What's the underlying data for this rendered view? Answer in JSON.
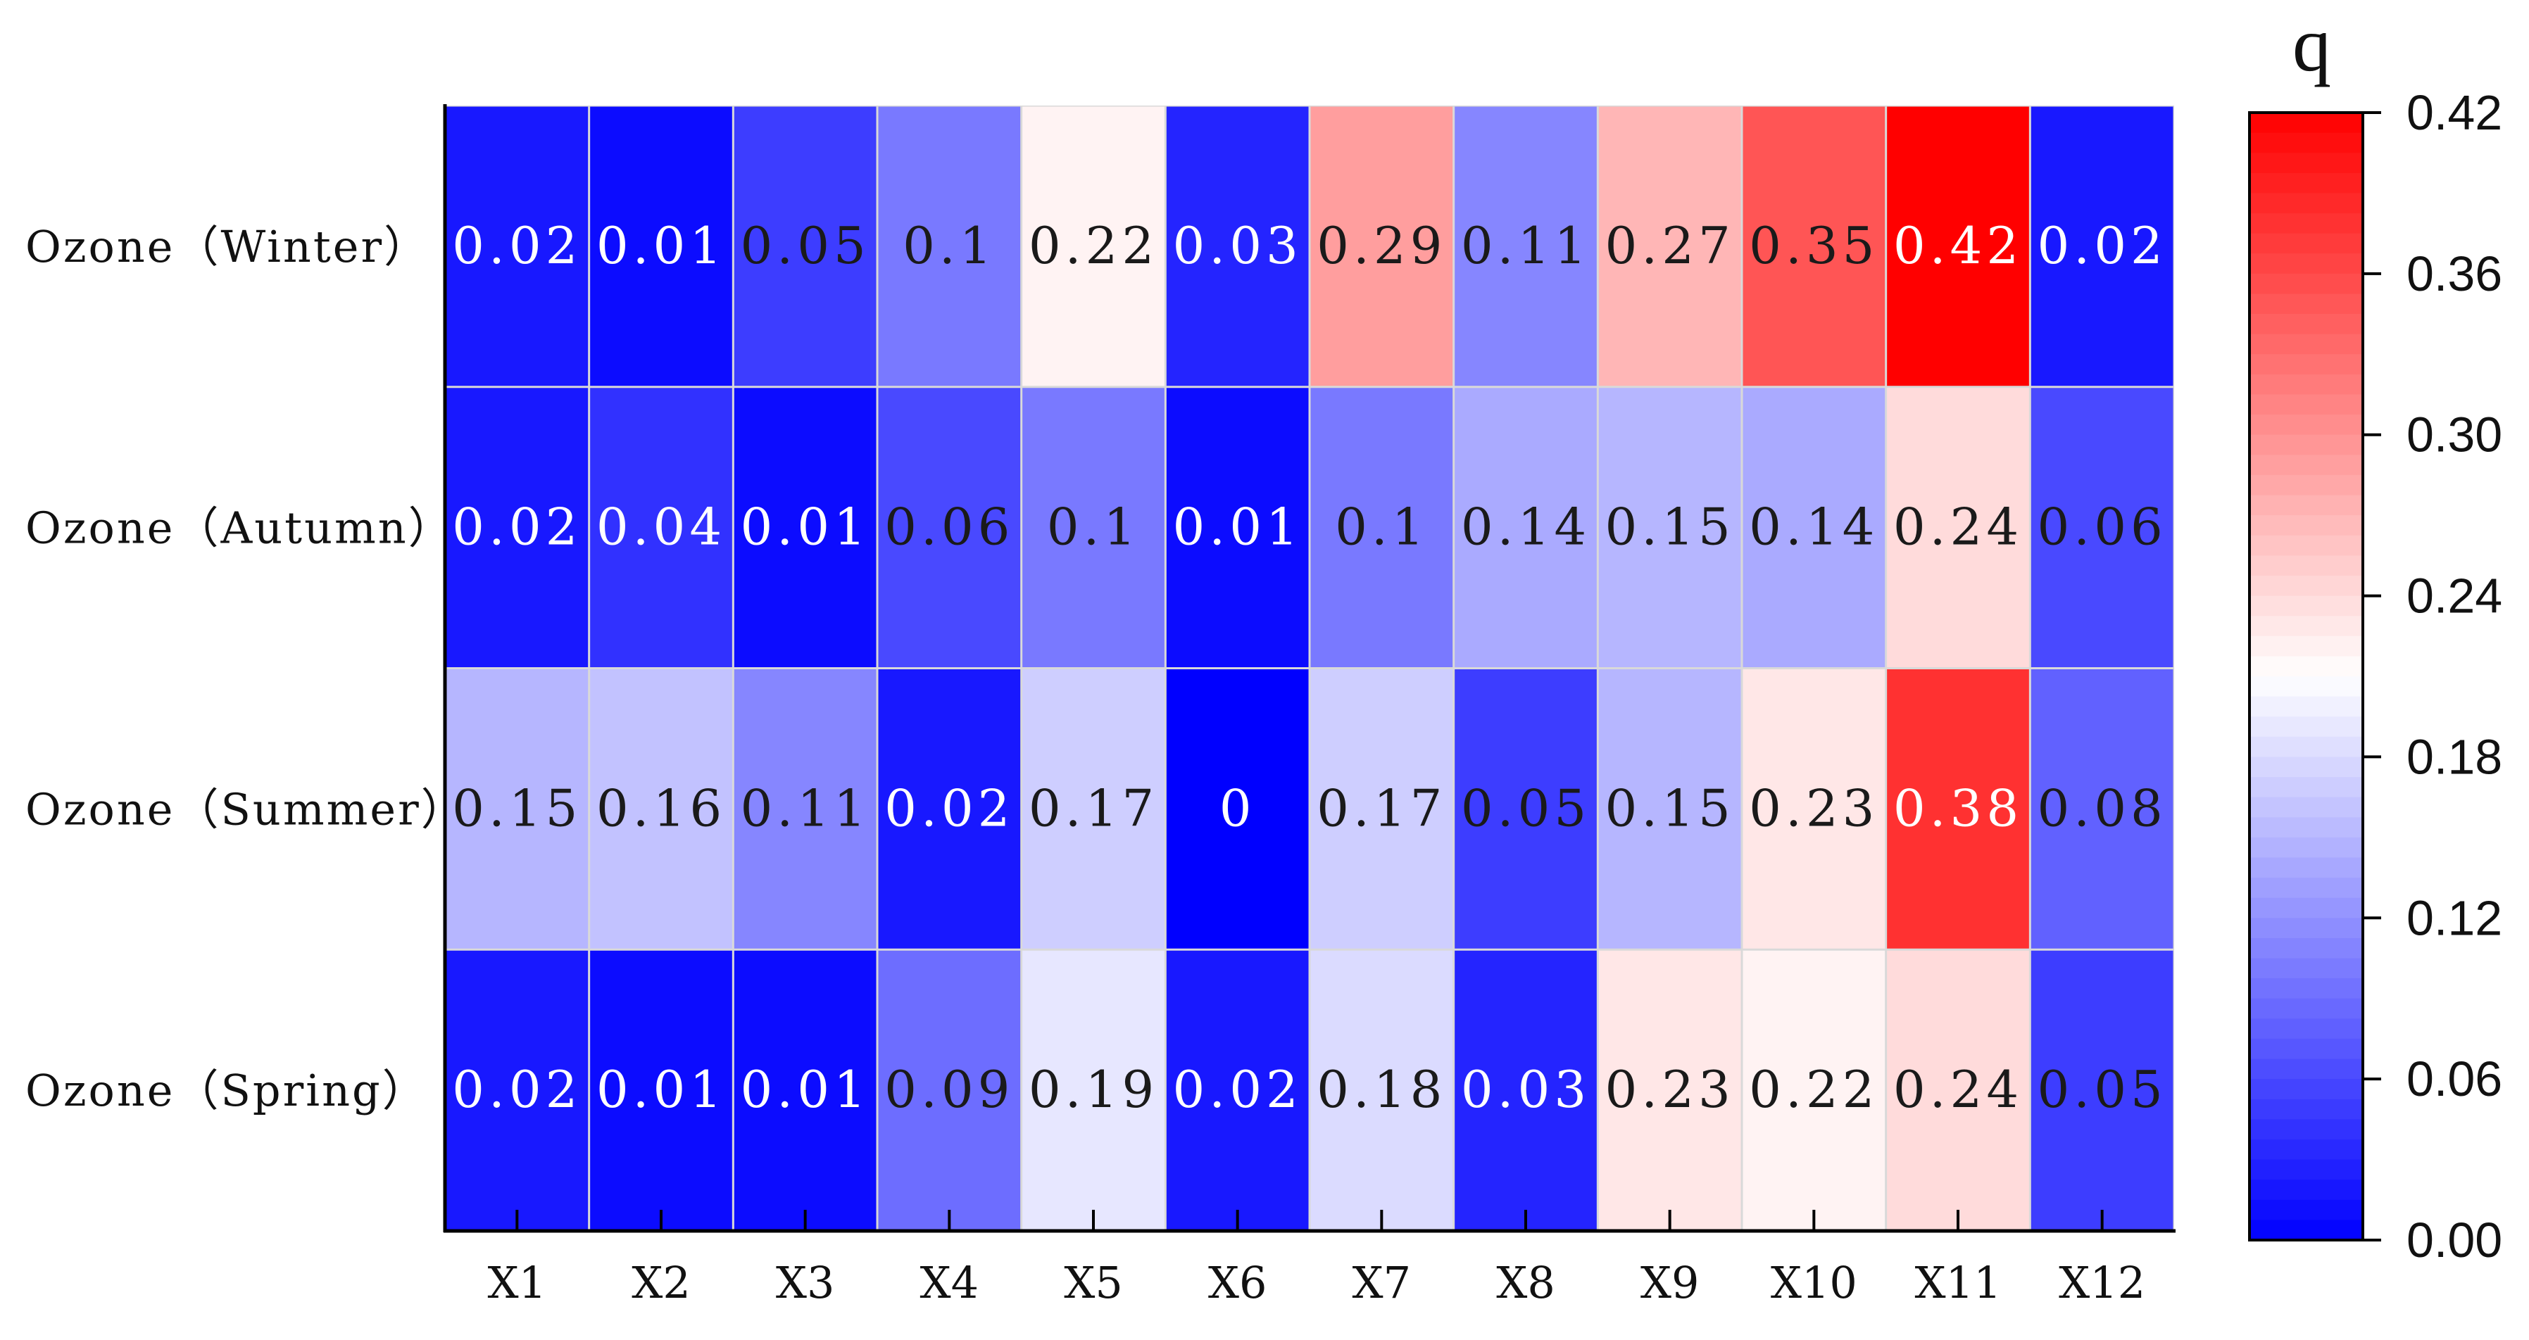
{
  "chart_data": {
    "type": "heatmap",
    "title": "",
    "xlabel": "",
    "ylabel": "",
    "columns": [
      "X1",
      "X2",
      "X3",
      "X4",
      "X5",
      "X6",
      "X7",
      "X8",
      "X9",
      "X10",
      "X11",
      "X12"
    ],
    "rows": [
      "Ozone（Winter）",
      "Ozone（Autumn）",
      "Ozone（Summer）",
      "Ozone（Spring）"
    ],
    "values": [
      [
        0.02,
        0.01,
        0.05,
        0.1,
        0.22,
        0.03,
        0.29,
        0.11,
        0.27,
        0.35,
        0.42,
        0.02
      ],
      [
        0.02,
        0.04,
        0.01,
        0.06,
        0.1,
        0.01,
        0.1,
        0.14,
        0.15,
        0.14,
        0.24,
        0.06
      ],
      [
        0.15,
        0.16,
        0.11,
        0.02,
        0.17,
        0,
        0.17,
        0.05,
        0.15,
        0.23,
        0.38,
        0.08
      ],
      [
        0.02,
        0.01,
        0.01,
        0.09,
        0.19,
        0.02,
        0.18,
        0.03,
        0.23,
        0.22,
        0.24,
        0.05
      ]
    ],
    "cell_labels": [
      [
        "0.02",
        "0.01",
        "0.05",
        "0.1",
        "0.22",
        "0.03",
        "0.29",
        "0.11",
        "0.27",
        "0.35",
        "0.42",
        "0.02"
      ],
      [
        "0.02",
        "0.04",
        "0.01",
        "0.06",
        "0.1",
        "0.01",
        "0.1",
        "0.14",
        "0.15",
        "0.14",
        "0.24",
        "0.06"
      ],
      [
        "0.15",
        "0.16",
        "0.11",
        "0.02",
        "0.17",
        "0",
        "0.17",
        "0.05",
        "0.15",
        "0.23",
        "0.38",
        "0.08"
      ],
      [
        "0.02",
        "0.01",
        "0.01",
        "0.09",
        "0.19",
        "0.02",
        "0.18",
        "0.03",
        "0.23",
        "0.22",
        "0.24",
        "0.05"
      ]
    ],
    "colorbar": {
      "title": "q",
      "min": 0.0,
      "max": 0.42,
      "midpoint": 0.21,
      "ticks": [
        "0.00",
        "0.06",
        "0.12",
        "0.18",
        "0.24",
        "0.30",
        "0.36",
        "0.42"
      ],
      "colors": {
        "low": "#0000ff",
        "mid": "#ffffff",
        "high": "#ff0000"
      },
      "position": "right"
    },
    "grid": true
  }
}
